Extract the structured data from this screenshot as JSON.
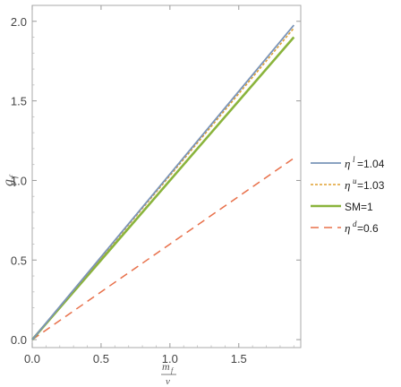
{
  "chart_data": {
    "type": "line",
    "xlabel": {
      "numerator": "m",
      "numerator_sub": "f",
      "denominator": "v"
    },
    "ylabel": {
      "base": "g",
      "sub": "f"
    },
    "xlim": [
      0,
      1.95
    ],
    "ylim": [
      -0.05,
      2.1
    ],
    "xticks": [
      0.0,
      0.5,
      1.0,
      1.5
    ],
    "xtick_labels": [
      "0.0",
      "0.5",
      "1.0",
      "1.5"
    ],
    "yticks": [
      0.0,
      0.5,
      1.0,
      1.5,
      2.0
    ],
    "ytick_labels": [
      "0.0",
      "0.5",
      "1.0",
      "1.5",
      "2.0"
    ],
    "legend_position": "right",
    "series": [
      {
        "symbol": "η",
        "sup": "l",
        "value": "=1.04",
        "label": "=1.04",
        "color": "#7a94b8",
        "dash": "solid",
        "width": 1.8,
        "x": [
          0,
          1.9
        ],
        "y": [
          0,
          1.976
        ]
      },
      {
        "symbol": "η",
        "sup": "u",
        "value": "=1.03",
        "label": "=1.03",
        "color": "#e0a030",
        "dash": "dotted",
        "width": 1.5,
        "x": [
          0,
          1.9
        ],
        "y": [
          0,
          1.957
        ]
      },
      {
        "symbol": "",
        "sup": "",
        "value": "",
        "label": "SM=1",
        "color": "#8ab43c",
        "dash": "solid",
        "width": 2.6,
        "x": [
          0,
          1.9
        ],
        "y": [
          0,
          1.9
        ]
      },
      {
        "symbol": "η",
        "sup": "d",
        "value": "=0.6",
        "label": "=0.6",
        "color": "#e8704a",
        "dash": "dashed",
        "width": 1.5,
        "x": [
          0,
          1.9
        ],
        "y": [
          0,
          1.14
        ]
      }
    ]
  }
}
